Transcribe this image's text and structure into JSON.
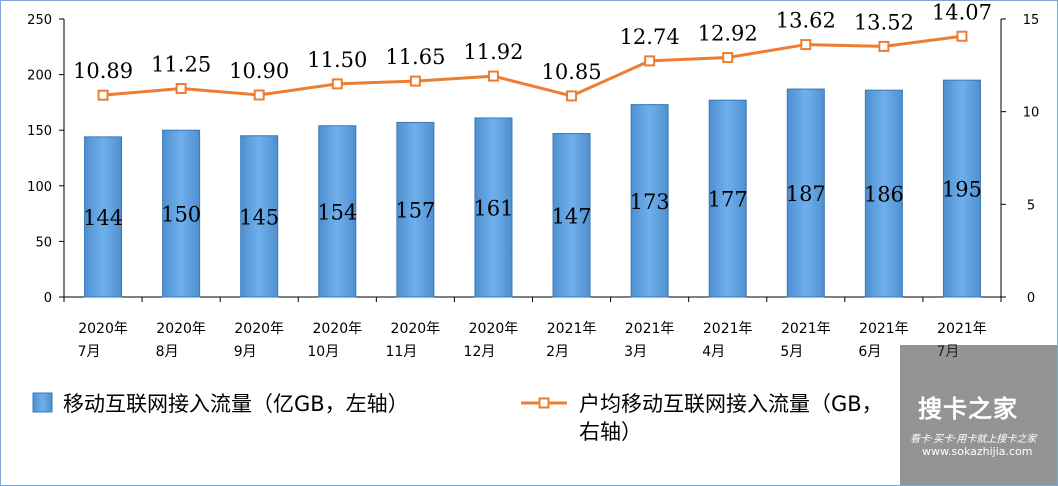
{
  "chart_data": {
    "type": "bar+line",
    "categories": [
      [
        "2020年",
        "7月"
      ],
      [
        "2020年",
        "8月"
      ],
      [
        "2020年",
        "9月"
      ],
      [
        "2020年",
        "10月"
      ],
      [
        "2020年",
        "11月"
      ],
      [
        "2020年",
        "12月"
      ],
      [
        "2021年",
        "2月"
      ],
      [
        "2021年",
        "3月"
      ],
      [
        "2021年",
        "4月"
      ],
      [
        "2021年",
        "5月"
      ],
      [
        "2021年",
        "6月"
      ],
      [
        "2021年",
        "7月"
      ]
    ],
    "bar_series": {
      "name": "移动互联网接入流量（亿GB，左轴）",
      "values": [
        144,
        150,
        145,
        154,
        157,
        161,
        147,
        173,
        177,
        187,
        186,
        195
      ],
      "labels": [
        "144",
        "150",
        "145",
        "154",
        "157",
        "161",
        "147",
        "173",
        "177",
        "187",
        "186",
        "195"
      ],
      "color": "#5b9bd5"
    },
    "line_series": {
      "name": "户均移动互联网接入流量（GB，右轴）",
      "values": [
        10.89,
        11.25,
        10.9,
        11.5,
        11.65,
        11.92,
        10.85,
        12.74,
        12.92,
        13.62,
        13.52,
        14.07
      ],
      "labels": [
        "10.89",
        "11.25",
        "10.90",
        "11.50",
        "11.65",
        "11.92",
        "10.85",
        "12.74",
        "12.92",
        "13.62",
        "13.52",
        "14.07"
      ],
      "color": "#ed7d31"
    },
    "y_left": {
      "min": 0,
      "max": 250,
      "ticks": [
        0,
        50,
        100,
        150,
        200,
        250
      ]
    },
    "y_right": {
      "min": 0,
      "max": 15,
      "ticks": [
        0,
        5,
        10,
        15
      ]
    },
    "legend_position": "bottom",
    "grid": false
  },
  "watermark": {
    "logo": "搜卡之家",
    "subtitle": "看卡·买卡·用卡就上搜卡之家",
    "url": "www.sokazhijia.com"
  }
}
